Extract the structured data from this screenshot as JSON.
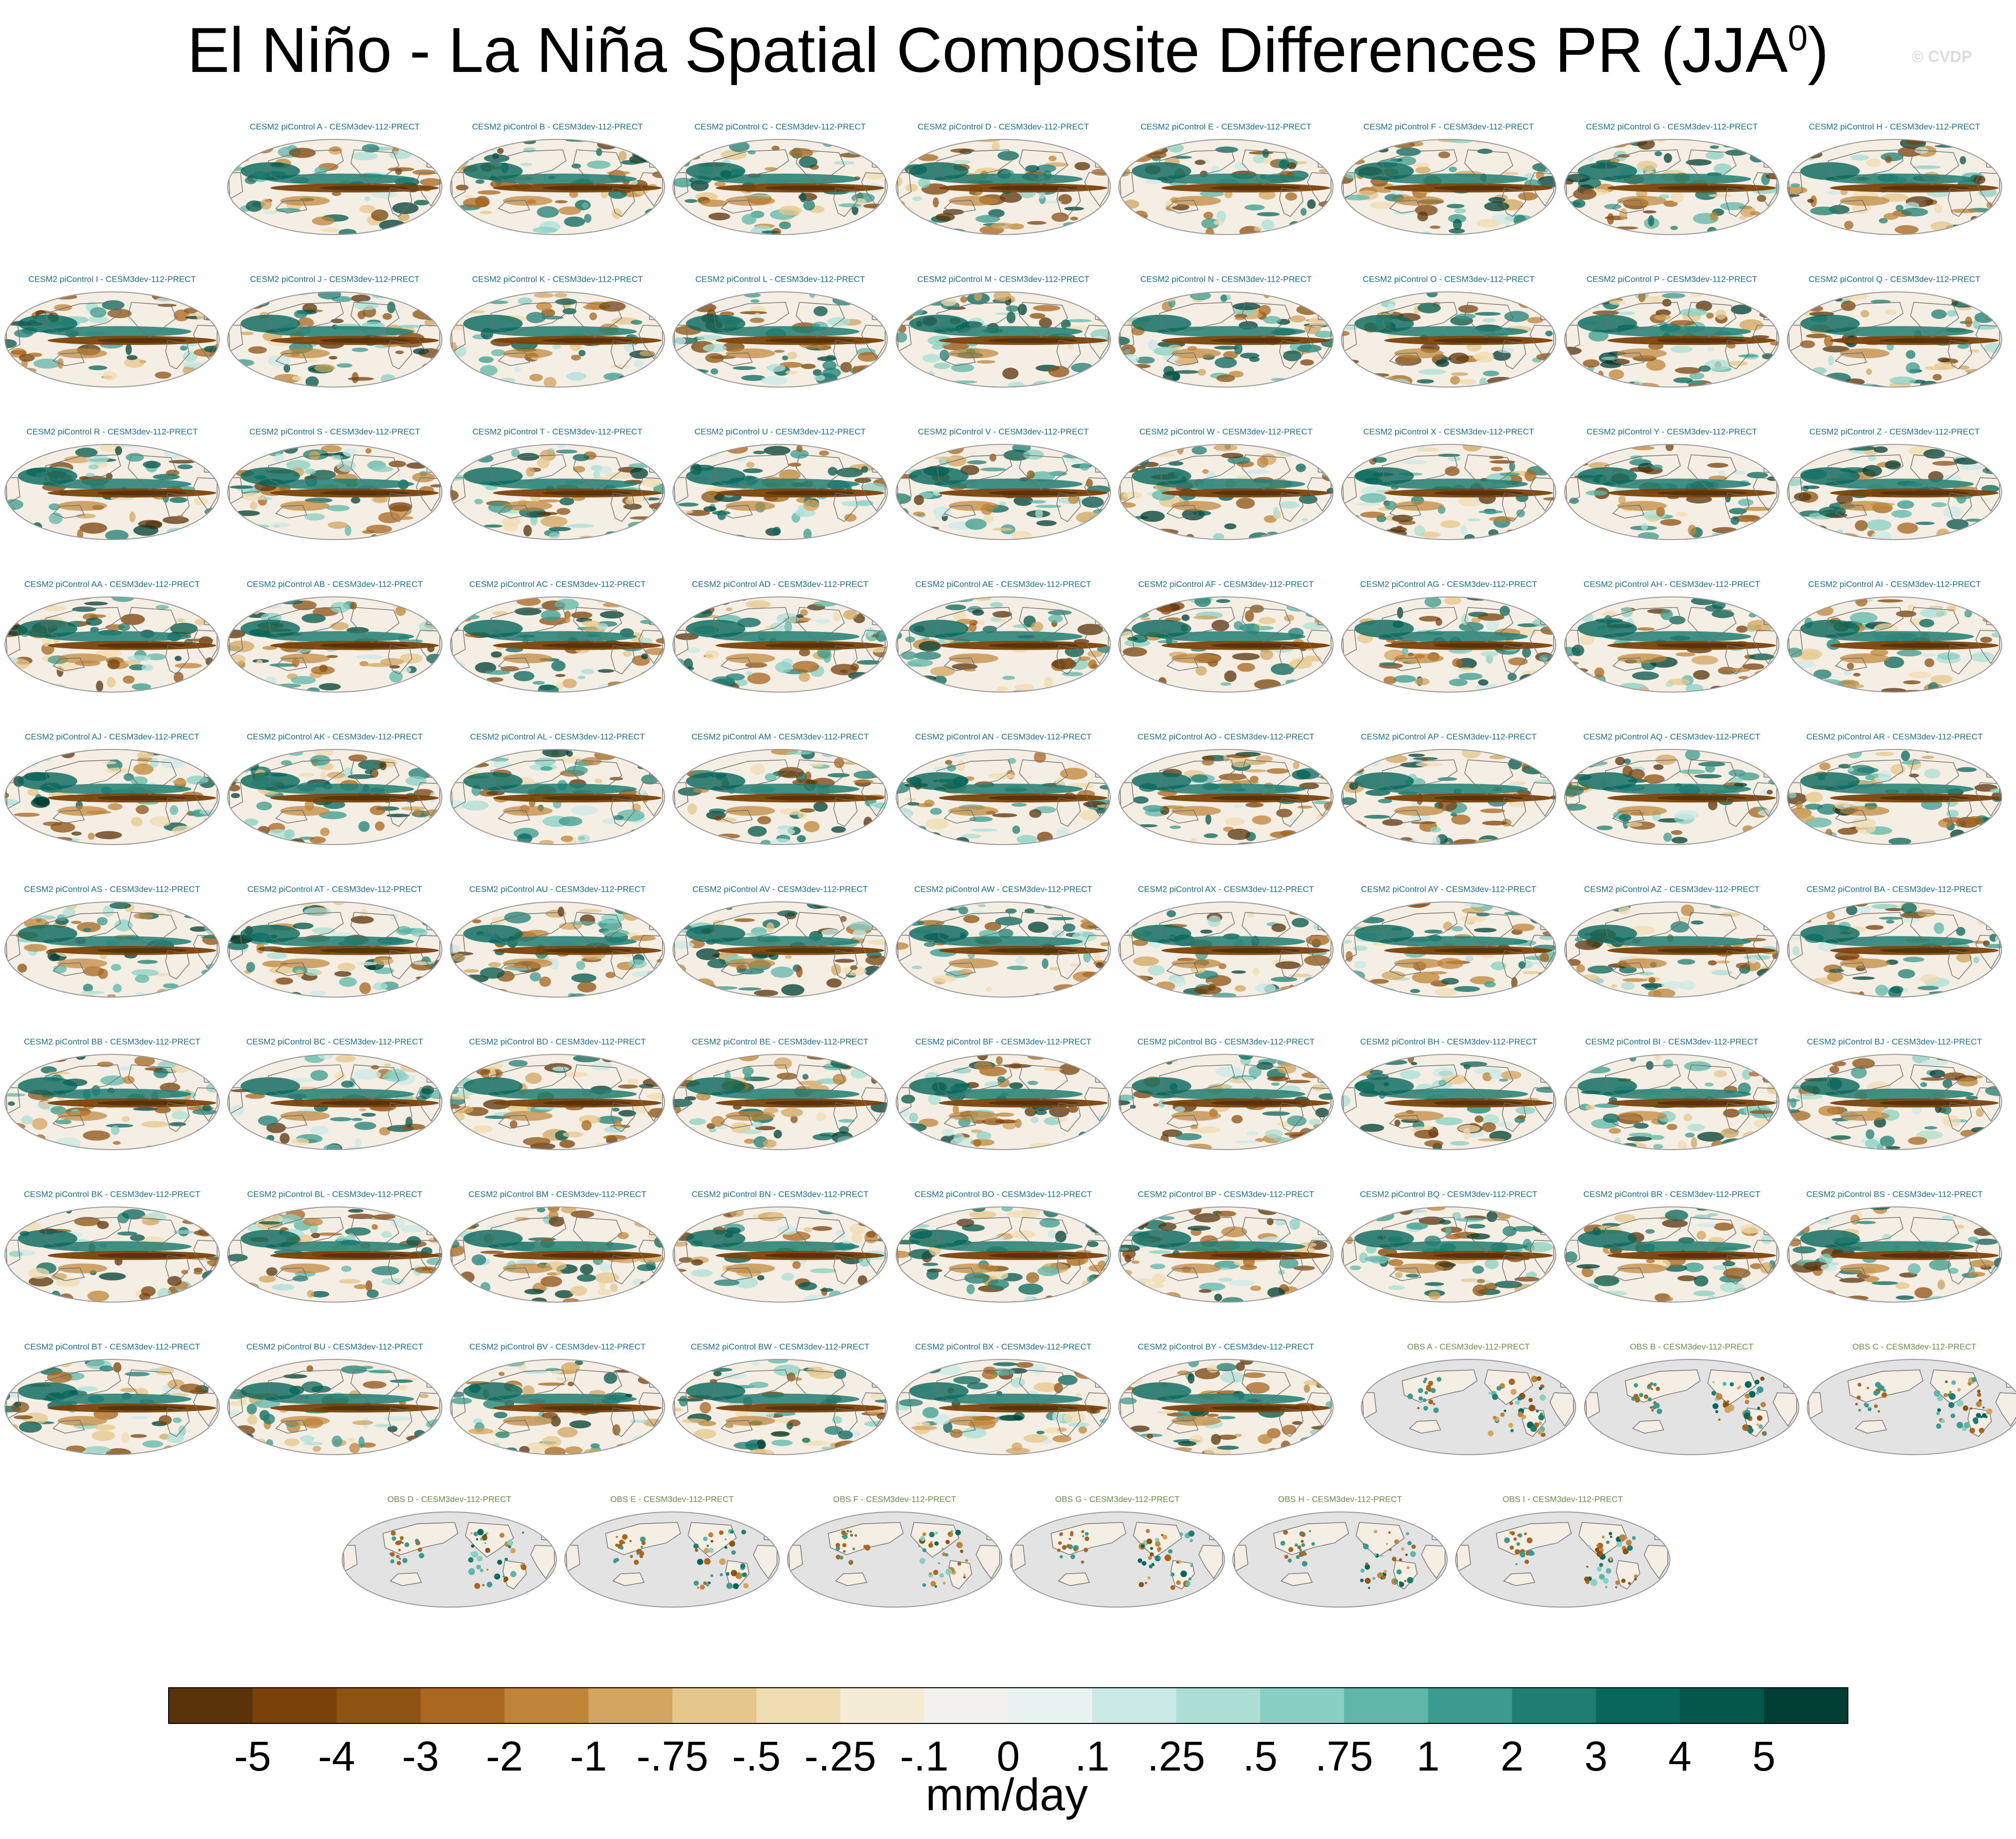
{
  "title_main": "El Niño - La Niña Spatial Composite Differences PR (JJA",
  "title_sup": "0",
  "title_end": ")",
  "watermark": "© CVDP",
  "colors": {
    "land_obs": "#e3e3e3",
    "ocean_neutral": "#f4eee4",
    "coast": "#6e6e6e",
    "panel_border": "#9a9a9a"
  },
  "chart_data": {
    "type": "heatmap",
    "title": "El Niño - La Niña Spatial Composite Differences PR (JJA0)",
    "colorbar": {
      "units": "mm/day",
      "levels": [
        "-5",
        "-4",
        "-3",
        "-2",
        "-1",
        "-.75",
        "-.5",
        "-.25",
        "-.1",
        "0",
        ".1",
        ".25",
        ".5",
        ".75",
        "1",
        "2",
        "3",
        "4",
        "5"
      ],
      "colors": [
        "#5b330a",
        "#7a4209",
        "#8e5213",
        "#a8661e",
        "#bf8438",
        "#d3a660",
        "#e5c78c",
        "#f0dcb2",
        "#f5ecd5",
        "#f3f1ec",
        "#e8f2f1",
        "#cceae5",
        "#ace0d7",
        "#88d0c3",
        "#5fb7aa",
        "#3b9b8e",
        "#1f7e72",
        "#08665b",
        "#03564a",
        "#003d32"
      ]
    },
    "panels": [
      {
        "title": "CESM2 piControl A - CESM3dev-112-PRECT",
        "kind": "model"
      },
      {
        "title": "CESM2 piControl B - CESM3dev-112-PRECT",
        "kind": "model"
      },
      {
        "title": "CESM2 piControl C - CESM3dev-112-PRECT",
        "kind": "model"
      },
      {
        "title": "CESM2 piControl D - CESM3dev-112-PRECT",
        "kind": "model"
      },
      {
        "title": "CESM2 piControl E - CESM3dev-112-PRECT",
        "kind": "model"
      },
      {
        "title": "CESM2 piControl F - CESM3dev-112-PRECT",
        "kind": "model"
      },
      {
        "title": "CESM2 piControl G - CESM3dev-112-PRECT",
        "kind": "model"
      },
      {
        "title": "CESM2 piControl H - CESM3dev-112-PRECT",
        "kind": "model"
      },
      {
        "title": "CESM2 piControl I - CESM3dev-112-PRECT",
        "kind": "model"
      },
      {
        "title": "CESM2 piControl J - CESM3dev-112-PRECT",
        "kind": "model"
      },
      {
        "title": "CESM2 piControl K - CESM3dev-112-PRECT",
        "kind": "model"
      },
      {
        "title": "CESM2 piControl L - CESM3dev-112-PRECT",
        "kind": "model"
      },
      {
        "title": "CESM2 piControl M - CESM3dev-112-PRECT",
        "kind": "model"
      },
      {
        "title": "CESM2 piControl N - CESM3dev-112-PRECT",
        "kind": "model"
      },
      {
        "title": "CESM2 piControl O - CESM3dev-112-PRECT",
        "kind": "model"
      },
      {
        "title": "CESM2 piControl P - CESM3dev-112-PRECT",
        "kind": "model"
      },
      {
        "title": "CESM2 piControl Q - CESM3dev-112-PRECT",
        "kind": "model"
      },
      {
        "title": "CESM2 piControl R - CESM3dev-112-PRECT",
        "kind": "model"
      },
      {
        "title": "CESM2 piControl S - CESM3dev-112-PRECT",
        "kind": "model"
      },
      {
        "title": "CESM2 piControl T - CESM3dev-112-PRECT",
        "kind": "model"
      },
      {
        "title": "CESM2 piControl U - CESM3dev-112-PRECT",
        "kind": "model"
      },
      {
        "title": "CESM2 piControl V - CESM3dev-112-PRECT",
        "kind": "model"
      },
      {
        "title": "CESM2 piControl W - CESM3dev-112-PRECT",
        "kind": "model"
      },
      {
        "title": "CESM2 piControl X - CESM3dev-112-PRECT",
        "kind": "model"
      },
      {
        "title": "CESM2 piControl Y - CESM3dev-112-PRECT",
        "kind": "model"
      },
      {
        "title": "CESM2 piControl Z - CESM3dev-112-PRECT",
        "kind": "model"
      },
      {
        "title": "CESM2 piControl AA - CESM3dev-112-PRECT",
        "kind": "model"
      },
      {
        "title": "CESM2 piControl AB - CESM3dev-112-PRECT",
        "kind": "model"
      },
      {
        "title": "CESM2 piControl AC - CESM3dev-112-PRECT",
        "kind": "model"
      },
      {
        "title": "CESM2 piControl AD - CESM3dev-112-PRECT",
        "kind": "model"
      },
      {
        "title": "CESM2 piControl AE - CESM3dev-112-PRECT",
        "kind": "model"
      },
      {
        "title": "CESM2 piControl AF - CESM3dev-112-PRECT",
        "kind": "model"
      },
      {
        "title": "CESM2 piControl AG - CESM3dev-112-PRECT",
        "kind": "model"
      },
      {
        "title": "CESM2 piControl AH - CESM3dev-112-PRECT",
        "kind": "model"
      },
      {
        "title": "CESM2 piControl AI - CESM3dev-112-PRECT",
        "kind": "model"
      },
      {
        "title": "CESM2 piControl AJ - CESM3dev-112-PRECT",
        "kind": "model"
      },
      {
        "title": "CESM2 piControl AK - CESM3dev-112-PRECT",
        "kind": "model"
      },
      {
        "title": "CESM2 piControl AL - CESM3dev-112-PRECT",
        "kind": "model"
      },
      {
        "title": "CESM2 piControl AM - CESM3dev-112-PRECT",
        "kind": "model"
      },
      {
        "title": "CESM2 piControl AN - CESM3dev-112-PRECT",
        "kind": "model"
      },
      {
        "title": "CESM2 piControl AO - CESM3dev-112-PRECT",
        "kind": "model"
      },
      {
        "title": "CESM2 piControl AP - CESM3dev-112-PRECT",
        "kind": "model"
      },
      {
        "title": "CESM2 piControl AQ - CESM3dev-112-PRECT",
        "kind": "model"
      },
      {
        "title": "CESM2 piControl AR - CESM3dev-112-PRECT",
        "kind": "model"
      },
      {
        "title": "CESM2 piControl AS - CESM3dev-112-PRECT",
        "kind": "model"
      },
      {
        "title": "CESM2 piControl AT - CESM3dev-112-PRECT",
        "kind": "model"
      },
      {
        "title": "CESM2 piControl AU - CESM3dev-112-PRECT",
        "kind": "model"
      },
      {
        "title": "CESM2 piControl AV - CESM3dev-112-PRECT",
        "kind": "model"
      },
      {
        "title": "CESM2 piControl AW - CESM3dev-112-PRECT",
        "kind": "model"
      },
      {
        "title": "CESM2 piControl AX - CESM3dev-112-PRECT",
        "kind": "model"
      },
      {
        "title": "CESM2 piControl AY - CESM3dev-112-PRECT",
        "kind": "model"
      },
      {
        "title": "CESM2 piControl AZ - CESM3dev-112-PRECT",
        "kind": "model"
      },
      {
        "title": "CESM2 piControl BA - CESM3dev-112-PRECT",
        "kind": "model"
      },
      {
        "title": "CESM2 piControl BB - CESM3dev-112-PRECT",
        "kind": "model"
      },
      {
        "title": "CESM2 piControl BC - CESM3dev-112-PRECT",
        "kind": "model"
      },
      {
        "title": "CESM2 piControl BD - CESM3dev-112-PRECT",
        "kind": "model"
      },
      {
        "title": "CESM2 piControl BE - CESM3dev-112-PRECT",
        "kind": "model"
      },
      {
        "title": "CESM2 piControl BF - CESM3dev-112-PRECT",
        "kind": "model"
      },
      {
        "title": "CESM2 piControl BG - CESM3dev-112-PRECT",
        "kind": "model"
      },
      {
        "title": "CESM2 piControl BH - CESM3dev-112-PRECT",
        "kind": "model"
      },
      {
        "title": "CESM2 piControl BI - CESM3dev-112-PRECT",
        "kind": "model"
      },
      {
        "title": "CESM2 piControl BJ - CESM3dev-112-PRECT",
        "kind": "model"
      },
      {
        "title": "CESM2 piControl BK - CESM3dev-112-PRECT",
        "kind": "model"
      },
      {
        "title": "CESM2 piControl BL - CESM3dev-112-PRECT",
        "kind": "model"
      },
      {
        "title": "CESM2 piControl BM - CESM3dev-112-PRECT",
        "kind": "model"
      },
      {
        "title": "CESM2 piControl BN - CESM3dev-112-PRECT",
        "kind": "model"
      },
      {
        "title": "CESM2 piControl BO - CESM3dev-112-PRECT",
        "kind": "model"
      },
      {
        "title": "CESM2 piControl BP - CESM3dev-112-PRECT",
        "kind": "model"
      },
      {
        "title": "CESM2 piControl BQ - CESM3dev-112-PRECT",
        "kind": "model"
      },
      {
        "title": "CESM2 piControl BR - CESM3dev-112-PRECT",
        "kind": "model"
      },
      {
        "title": "CESM2 piControl BS - CESM3dev-112-PRECT",
        "kind": "model"
      },
      {
        "title": "CESM2 piControl BT - CESM3dev-112-PRECT",
        "kind": "model"
      },
      {
        "title": "CESM2 piControl BU - CESM3dev-112-PRECT",
        "kind": "model"
      },
      {
        "title": "CESM2 piControl BV - CESM3dev-112-PRECT",
        "kind": "model"
      },
      {
        "title": "CESM2 piControl BW - CESM3dev-112-PRECT",
        "kind": "model"
      },
      {
        "title": "CESM2 piControl BX - CESM3dev-112-PRECT",
        "kind": "model"
      },
      {
        "title": "CESM2 piControl BY - CESM3dev-112-PRECT",
        "kind": "model"
      },
      {
        "title": "OBS A - CESM3dev-112-PRECT",
        "kind": "obs"
      },
      {
        "title": "OBS B - CESM3dev-112-PRECT",
        "kind": "obs"
      },
      {
        "title": "OBS C - CESM3dev-112-PRECT",
        "kind": "obs"
      },
      {
        "title": "OBS D - CESM3dev-112-PRECT",
        "kind": "obs"
      },
      {
        "title": "OBS E - CESM3dev-112-PRECT",
        "kind": "obs"
      },
      {
        "title": "OBS F - CESM3dev-112-PRECT",
        "kind": "obs"
      },
      {
        "title": "OBS G - CESM3dev-112-PRECT",
        "kind": "obs"
      },
      {
        "title": "OBS H - CESM3dev-112-PRECT",
        "kind": "obs"
      },
      {
        "title": "OBS I - CESM3dev-112-PRECT",
        "kind": "obs"
      }
    ]
  }
}
